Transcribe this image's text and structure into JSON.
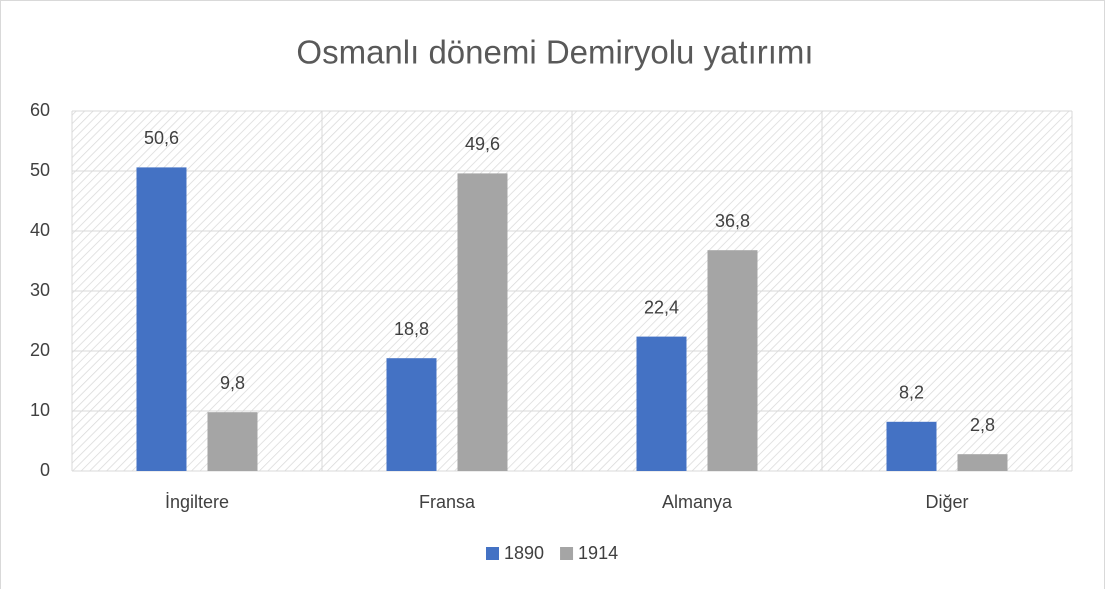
{
  "chart_data": {
    "type": "bar",
    "title": "Osmanlı dönemi Demiryolu yatırımı",
    "categories": [
      "İngiltere",
      "Fransa",
      "Almanya",
      "Diğer"
    ],
    "series": [
      {
        "name": "1890",
        "color": "#4472c4",
        "values": [
          50.6,
          18.8,
          22.4,
          8.2
        ],
        "value_labels": [
          "50,6",
          "18,8",
          "22,4",
          "8,2"
        ]
      },
      {
        "name": "1914",
        "color": "#a5a5a5",
        "values": [
          9.8,
          49.6,
          36.8,
          2.8
        ],
        "value_labels": [
          "9,8",
          "49,6",
          "36,8",
          "2,8"
        ]
      }
    ],
    "ylim": [
      0,
      60
    ],
    "yticks": [
      0,
      10,
      20,
      30,
      40,
      50,
      60
    ],
    "grid": true,
    "legend": "bottom"
  }
}
